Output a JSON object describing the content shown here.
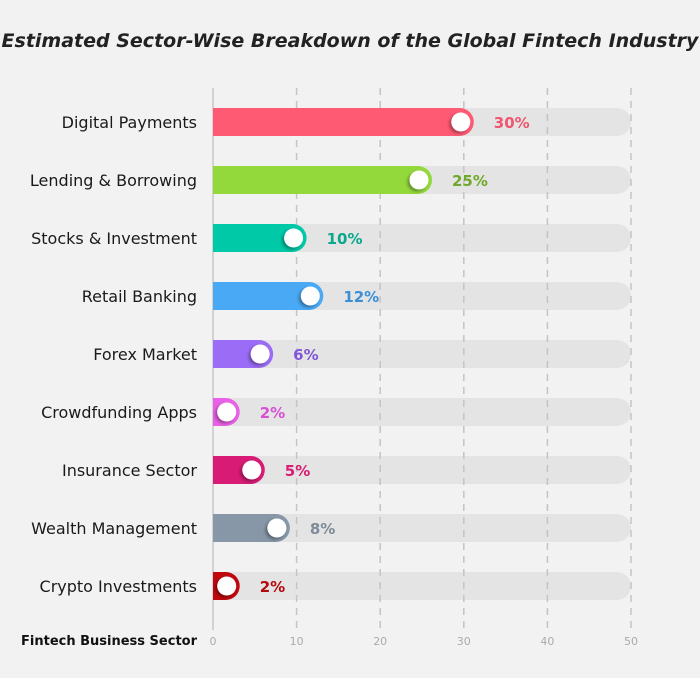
{
  "chart_data": {
    "type": "bar",
    "orientation": "horizontal",
    "title": "Estimated Sector-Wise Breakdown of the Global Fintech Industry",
    "ylabel": "Fintech Business Sector",
    "xlabel": "",
    "xlim": [
      0,
      50
    ],
    "xticks": [
      0,
      10,
      20,
      30,
      40,
      50
    ],
    "grid": true,
    "categories": [
      "Digital Payments",
      "Lending & Borrowing",
      "Stocks & Investment",
      "Retail Banking",
      "Forex Market",
      "Crowdfunding Apps",
      "Insurance Sector",
      "Wealth Management",
      "Crypto Investments"
    ],
    "values": [
      30,
      25,
      10,
      12,
      6,
      2,
      5,
      8,
      2
    ],
    "value_labels": [
      "30%",
      "25%",
      "10%",
      "12%",
      "6%",
      "2%",
      "5%",
      "8%",
      "2%"
    ],
    "colors": [
      "#ff5a73",
      "#94d93b",
      "#00c9a7",
      "#4aa9f5",
      "#9b6cf6",
      "#e961e6",
      "#d81b74",
      "#8797a8",
      "#c0080c"
    ],
    "label_colors": [
      "#f0566e",
      "#6fa82a",
      "#0aa88c",
      "#3a8fd6",
      "#7f56d9",
      "#d94fd6",
      "#d81b74",
      "#7d8b99",
      "#b20a0e"
    ]
  }
}
